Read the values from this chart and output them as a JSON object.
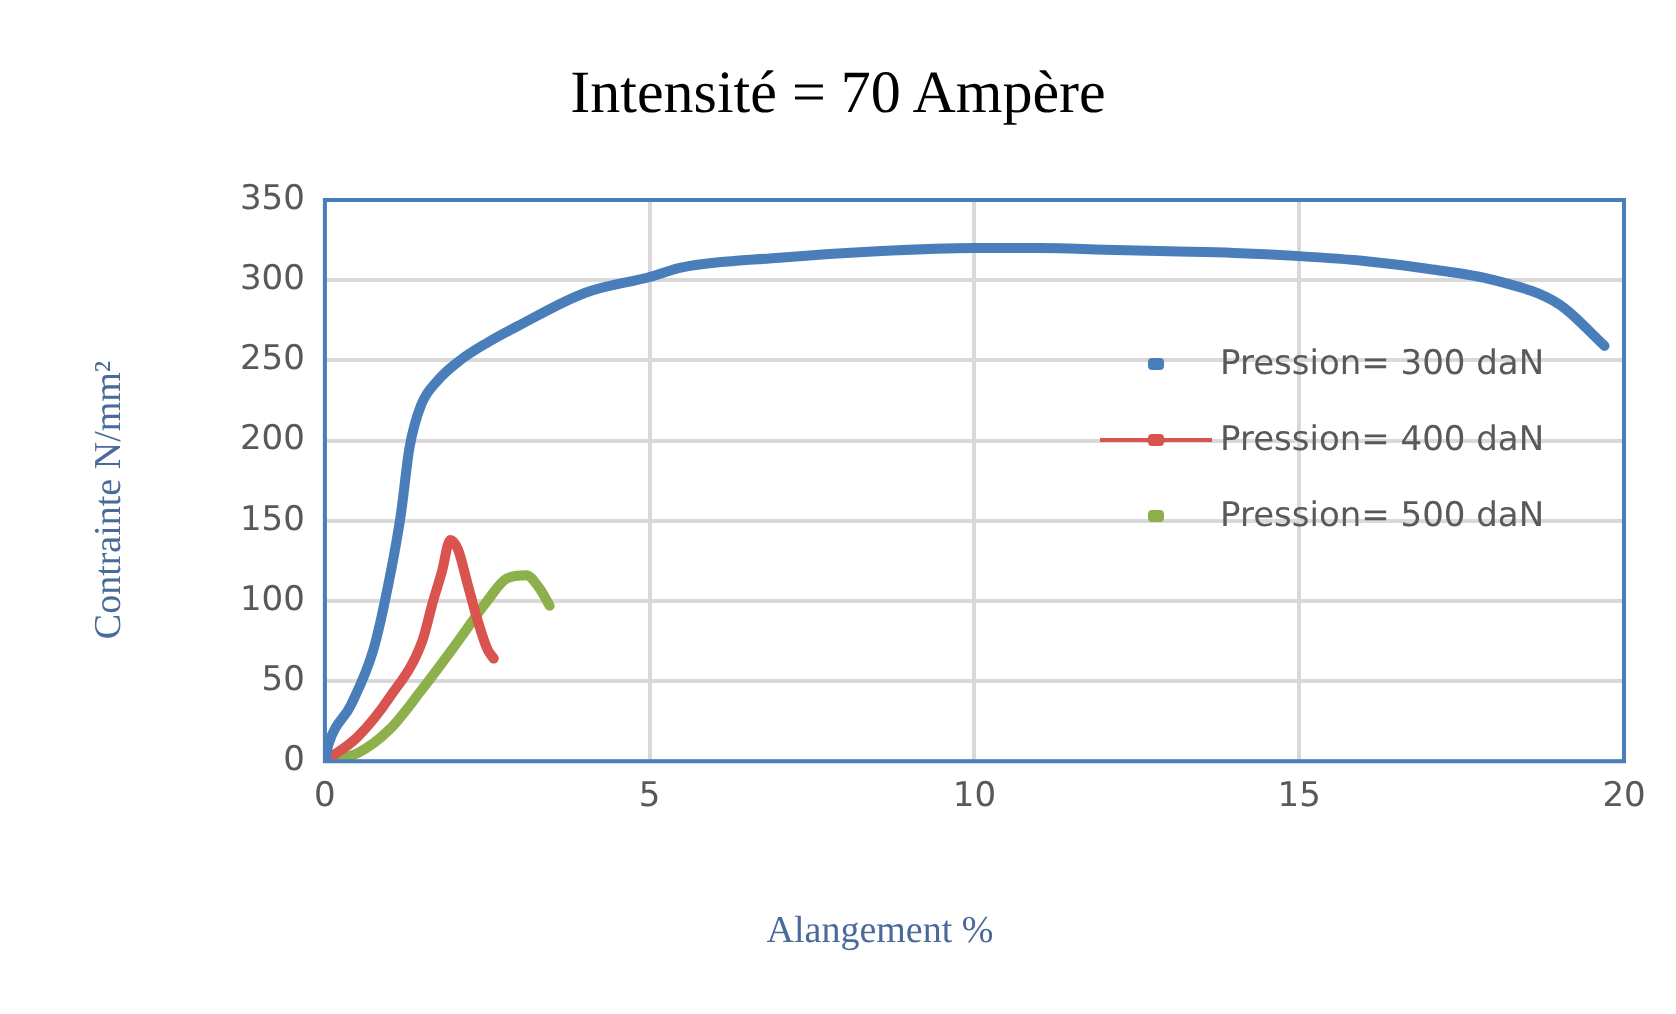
{
  "chart_data": {
    "type": "line",
    "title": "Intensité = 70 Ampère",
    "xlabel": "Alangement  %",
    "ylabel": "Contrainte N/mm²",
    "xlim": [
      0,
      20
    ],
    "xticks": [
      0,
      5,
      10,
      15,
      20
    ],
    "ylim": [
      0,
      350
    ],
    "yticks": [
      0,
      50,
      100,
      150,
      200,
      250,
      300,
      350
    ],
    "grid": true,
    "legend": "right",
    "marker": "none",
    "series": [
      {
        "name": "Pression= 300 daN",
        "color": "#4a7ebb",
        "x": [
          0,
          0.06,
          0.4,
          0.75,
          1.0,
          1.17,
          1.3,
          1.48,
          1.75,
          2.08,
          2.5,
          3,
          4,
          5,
          5.5,
          7,
          8.5,
          10,
          11,
          12,
          13,
          14,
          15,
          16,
          17,
          18,
          19,
          19.7
        ],
        "values": [
          0,
          11,
          35,
          70,
          115,
          154,
          195,
          222,
          238,
          250,
          261,
          272,
          292,
          302,
          308,
          314,
          318,
          320,
          320,
          319,
          318,
          317,
          315,
          312,
          307,
          300,
          285,
          259
        ]
      },
      {
        "name": "Pression= 400 daN",
        "color": "#d9534f",
        "x": [
          0,
          0.5,
          1,
          1.5,
          1.66,
          1.8,
          1.93,
          2.05,
          2.2,
          2.35,
          2.5,
          2.6
        ],
        "values": [
          0,
          15,
          40,
          75,
          99,
          118,
          138,
          132,
          110,
          88,
          70,
          64
        ]
      },
      {
        "name": "Pression= 500 daN",
        "color": "#8cb04a",
        "x": [
          0,
          0.5,
          1,
          1.5,
          2,
          2.5,
          2.8,
          3.1,
          3.3,
          3.46
        ],
        "values": [
          0,
          5,
          20,
          45,
          72,
          100,
          114,
          116,
          108,
          97
        ]
      }
    ]
  }
}
